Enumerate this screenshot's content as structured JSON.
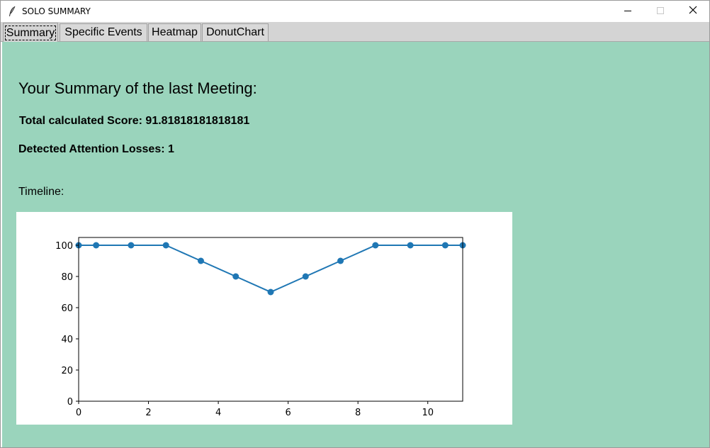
{
  "window": {
    "title": "SOLO SUMMARY",
    "icon": "feather-icon",
    "controls": [
      "minimize-icon",
      "maximize-icon",
      "close-icon"
    ]
  },
  "tabs": [
    {
      "label": "Summary",
      "selected": true
    },
    {
      "label": "Specific Events",
      "selected": false
    },
    {
      "label": "Heatmap",
      "selected": false
    },
    {
      "label": "DonutChart",
      "selected": false
    }
  ],
  "summary": {
    "heading": "Your Summary of the last Meeting:",
    "score": "Total calculated Score: 91.81818181818181",
    "losses": "Detected Attention Losses: 1",
    "timeline_label": "Timeline:"
  },
  "colors": {
    "background": "#9ad4bc",
    "line": "#1f77b4"
  },
  "chart_data": {
    "type": "line",
    "x": [
      0,
      0.5,
      1.5,
      2.5,
      3.5,
      4.5,
      5.5,
      6.5,
      7.5,
      8.5,
      9.5,
      10.5,
      11
    ],
    "values": [
      100,
      100,
      100,
      100,
      90,
      80,
      70,
      80,
      90,
      100,
      100,
      100,
      100
    ],
    "xlim": [
      0,
      11
    ],
    "ylim": [
      0,
      105
    ],
    "xticks": [
      0,
      2,
      4,
      6,
      8,
      10
    ],
    "yticks": [
      0,
      20,
      40,
      60,
      80,
      100
    ],
    "xtick_labels": [
      "0",
      "2",
      "4",
      "6",
      "8",
      "10"
    ],
    "ytick_labels": [
      "0",
      "20",
      "40",
      "60",
      "80",
      "100"
    ],
    "grid": false,
    "markers": true
  }
}
